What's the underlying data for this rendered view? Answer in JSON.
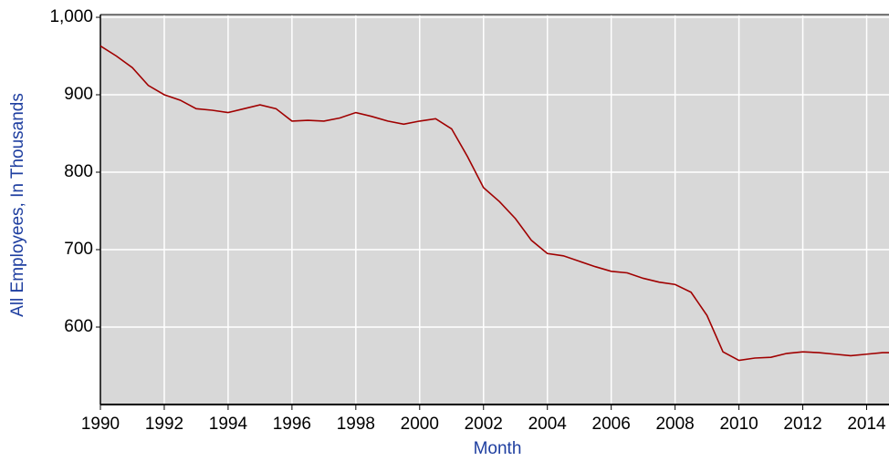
{
  "chart_data": {
    "type": "line",
    "x_label": "Month",
    "y_label": "All Employees, In Thousands",
    "x": [
      1990.0,
      1990.5,
      1991.0,
      1991.5,
      1992.0,
      1992.5,
      1993.0,
      1993.5,
      1994.0,
      1994.5,
      1995.0,
      1995.5,
      1996.0,
      1996.5,
      1997.0,
      1997.5,
      1998.0,
      1998.5,
      1999.0,
      1999.5,
      2000.0,
      2000.5,
      2001.0,
      2001.5,
      2002.0,
      2002.5,
      2003.0,
      2003.5,
      2004.0,
      2004.5,
      2005.0,
      2005.5,
      2006.0,
      2006.5,
      2007.0,
      2007.5,
      2008.0,
      2008.5,
      2009.0,
      2009.5,
      2010.0,
      2010.5,
      2011.0,
      2011.5,
      2012.0,
      2012.5,
      2013.0,
      2013.5,
      2014.0,
      2014.5,
      2014.7
    ],
    "series": [
      {
        "name": "All Employees",
        "color": "#a00000",
        "values": [
          963,
          950,
          935,
          912,
          900,
          893,
          882,
          880,
          877,
          882,
          887,
          882,
          866,
          867,
          866,
          870,
          877,
          872,
          866,
          862,
          866,
          869,
          856,
          820,
          780,
          762,
          740,
          712,
          695,
          692,
          685,
          678,
          672,
          670,
          663,
          658,
          655,
          645,
          615,
          568,
          557,
          560,
          561,
          566,
          568,
          567,
          565,
          563,
          565,
          567,
          567
        ]
      }
    ],
    "xlim": [
      1990,
      2014.7
    ],
    "xticks": [
      1990,
      1992,
      1994,
      1996,
      1998,
      2000,
      2002,
      2004,
      2006,
      2008,
      2010,
      2012,
      2014
    ],
    "ylim": [
      500,
      1000
    ],
    "yticks": [
      600,
      700,
      800,
      900,
      {
        "value": 1000,
        "label": "1,000"
      }
    ],
    "grid": true
  }
}
